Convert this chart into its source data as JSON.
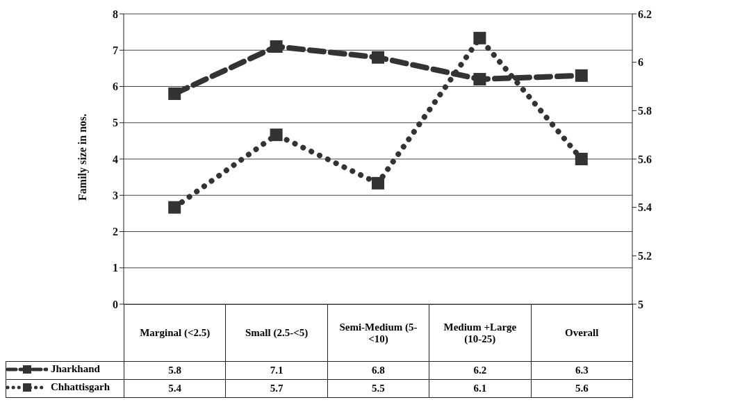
{
  "chart_data": {
    "type": "line",
    "ylabel": "Family size in nos.",
    "categories": [
      "Marginal (<2.5)",
      "Small (2.5-<5)",
      "Semi-Medium (5-<10)",
      "Medium +Large (10-25)",
      "Overall"
    ],
    "series": [
      {
        "name": "Jharkhand",
        "color": "#333333",
        "values": [
          5.8,
          7.1,
          6.8,
          6.2,
          6.3
        ],
        "line_style": "dashed"
      },
      {
        "name": "Chhattisgarh",
        "color": "#333333",
        "values": [
          5.4,
          5.7,
          5.5,
          6.1,
          5.6
        ],
        "line_style": "dotted",
        "axis": "y2"
      }
    ],
    "ylim": [
      0,
      8
    ],
    "yticks": [
      0,
      1,
      2,
      3,
      4,
      5,
      6,
      7,
      8
    ],
    "y2lim": [
      5,
      6.2
    ],
    "y2ticks": [
      5,
      5.2,
      5.4,
      5.6,
      5.8,
      6,
      6.2
    ],
    "grid": "y",
    "marker": "square",
    "data_labels": true,
    "legend": "bottom left"
  }
}
